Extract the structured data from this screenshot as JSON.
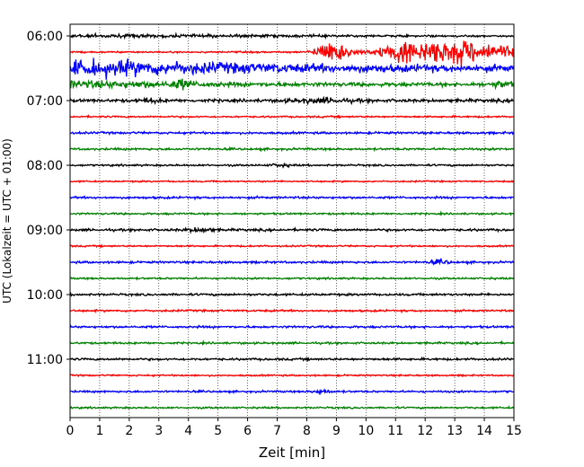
{
  "chart_data": {
    "type": "line",
    "xlabel": "Zeit  [min]",
    "ylabel": "UTC (Lokalzeit = UTC + 01:00)",
    "xlim": [
      0,
      15
    ],
    "x_ticks": [
      "0",
      "1",
      "2",
      "3",
      "4",
      "5",
      "6",
      "7",
      "8",
      "9",
      "10",
      "11",
      "12",
      "13",
      "14",
      "15"
    ],
    "y_ticks": [
      {
        "label": "06:00",
        "trace": 0
      },
      {
        "label": "07:00",
        "trace": 4
      },
      {
        "label": "08:00",
        "trace": 8
      },
      {
        "label": "09:00",
        "trace": 12
      },
      {
        "label": "10:00",
        "trace": 16
      },
      {
        "label": "11:00",
        "trace": 20
      }
    ],
    "grid": "vertical dotted at each minute",
    "trace_minutes": 15,
    "trace_colors": [
      "#000000",
      "#ff0000",
      "#0000ff",
      "#008000"
    ],
    "traces": [
      {
        "start": "06:00",
        "amp": 0.18,
        "bursts": [
          [
            0.0,
            8.0,
            0.15
          ]
        ]
      },
      {
        "start": "06:15",
        "amp": 0.15,
        "bursts": [
          [
            8.6,
            0.35,
            1.4
          ],
          [
            9.1,
            0.35,
            1.6
          ],
          [
            11.2,
            0.5,
            1.0
          ],
          [
            12.9,
            2.1,
            2.2
          ]
        ]
      },
      {
        "start": "06:30",
        "amp": 0.45,
        "bursts": [
          [
            0.0,
            4.8,
            0.8
          ],
          [
            5.0,
            12.0,
            0.35
          ]
        ]
      },
      {
        "start": "06:45",
        "amp": 0.35,
        "bursts": [
          [
            0.5,
            4.0,
            0.4
          ],
          [
            3.8,
            0.3,
            0.6
          ],
          [
            14.6,
            0.4,
            0.45
          ]
        ]
      },
      {
        "start": "07:00",
        "amp": 0.28,
        "bursts": [
          [
            2.7,
            0.3,
            0.35
          ],
          [
            8.5,
            1.0,
            0.35
          ]
        ]
      },
      {
        "start": "07:15",
        "amp": 0.16,
        "bursts": []
      },
      {
        "start": "07:30",
        "amp": 0.2,
        "bursts": []
      },
      {
        "start": "07:45",
        "amp": 0.2,
        "bursts": []
      },
      {
        "start": "08:00",
        "amp": 0.17,
        "bursts": [
          [
            7.1,
            0.3,
            0.25
          ]
        ]
      },
      {
        "start": "08:15",
        "amp": 0.14,
        "bursts": []
      },
      {
        "start": "08:30",
        "amp": 0.2,
        "bursts": []
      },
      {
        "start": "08:45",
        "amp": 0.17,
        "bursts": []
      },
      {
        "start": "09:00",
        "amp": 0.22,
        "bursts": [
          [
            4.4,
            0.4,
            0.35
          ]
        ]
      },
      {
        "start": "09:15",
        "amp": 0.15,
        "bursts": []
      },
      {
        "start": "09:30",
        "amp": 0.2,
        "bursts": [
          [
            12.5,
            0.3,
            0.35
          ]
        ]
      },
      {
        "start": "09:45",
        "amp": 0.17,
        "bursts": []
      },
      {
        "start": "10:00",
        "amp": 0.2,
        "bursts": []
      },
      {
        "start": "10:15",
        "amp": 0.18,
        "bursts": []
      },
      {
        "start": "10:30",
        "amp": 0.2,
        "bursts": []
      },
      {
        "start": "10:45",
        "amp": 0.18,
        "bursts": []
      },
      {
        "start": "11:00",
        "amp": 0.2,
        "bursts": []
      },
      {
        "start": "11:15",
        "amp": 0.15,
        "bursts": []
      },
      {
        "start": "11:30",
        "amp": 0.18,
        "bursts": [
          [
            8.5,
            0.3,
            0.3
          ]
        ]
      },
      {
        "start": "11:45",
        "amp": 0.16,
        "bursts": []
      }
    ]
  }
}
